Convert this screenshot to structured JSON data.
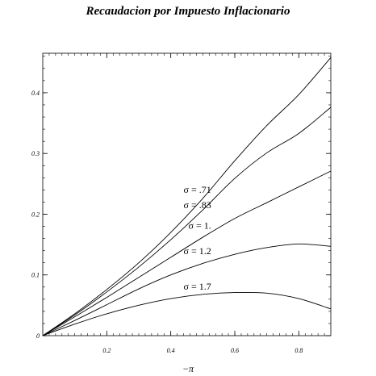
{
  "chart_data": {
    "type": "line",
    "title": "Recaudacion por Impuesto Inflacionario",
    "xlabel": "−π",
    "ylabel": "",
    "xlim": [
      0,
      0.9
    ],
    "ylim": [
      0,
      0.465
    ],
    "x_ticks": [
      0.2,
      0.4,
      0.6,
      0.8
    ],
    "x_tick_labels": [
      "0.2",
      "0.4",
      "0.6",
      "0.8"
    ],
    "y_ticks": [
      0,
      0.1,
      0.2,
      0.3,
      0.4
    ],
    "y_tick_labels": [
      "0",
      "0.1",
      "0.2",
      "0.3",
      "0.4"
    ],
    "grid": false,
    "legend": "none",
    "line_color": "#000000",
    "x": [
      0,
      0.1,
      0.2,
      0.3,
      0.4,
      0.5,
      0.6,
      0.7,
      0.8,
      0.9
    ],
    "series": [
      {
        "values": [
          0,
          0.036,
          0.076,
          0.12,
          0.17,
          0.226,
          0.288,
          0.346,
          0.397,
          0.458
        ]
      },
      {
        "values": [
          0,
          0.034,
          0.072,
          0.113,
          0.158,
          0.207,
          0.259,
          0.301,
          0.333,
          0.376
        ]
      },
      {
        "values": [
          0,
          0.031,
          0.063,
          0.096,
          0.129,
          0.162,
          0.193,
          0.219,
          0.245,
          0.271
        ]
      },
      {
        "values": [
          0,
          0.025,
          0.051,
          0.077,
          0.1,
          0.119,
          0.134,
          0.145,
          0.151,
          0.147
        ]
      },
      {
        "values": [
          0,
          0.019,
          0.036,
          0.05,
          0.061,
          0.068,
          0.071,
          0.07,
          0.061,
          0.044
        ]
      }
    ],
    "annotations": [
      {
        "text": "σ = .71",
        "x": 0.44,
        "y": 0.235
      },
      {
        "text": "σ = .83",
        "x": 0.44,
        "y": 0.21
      },
      {
        "text": "σ = 1.",
        "x": 0.455,
        "y": 0.176
      },
      {
        "text": "σ = 1.2",
        "x": 0.44,
        "y": 0.134
      },
      {
        "text": "σ = 1.7",
        "x": 0.44,
        "y": 0.076
      }
    ]
  }
}
